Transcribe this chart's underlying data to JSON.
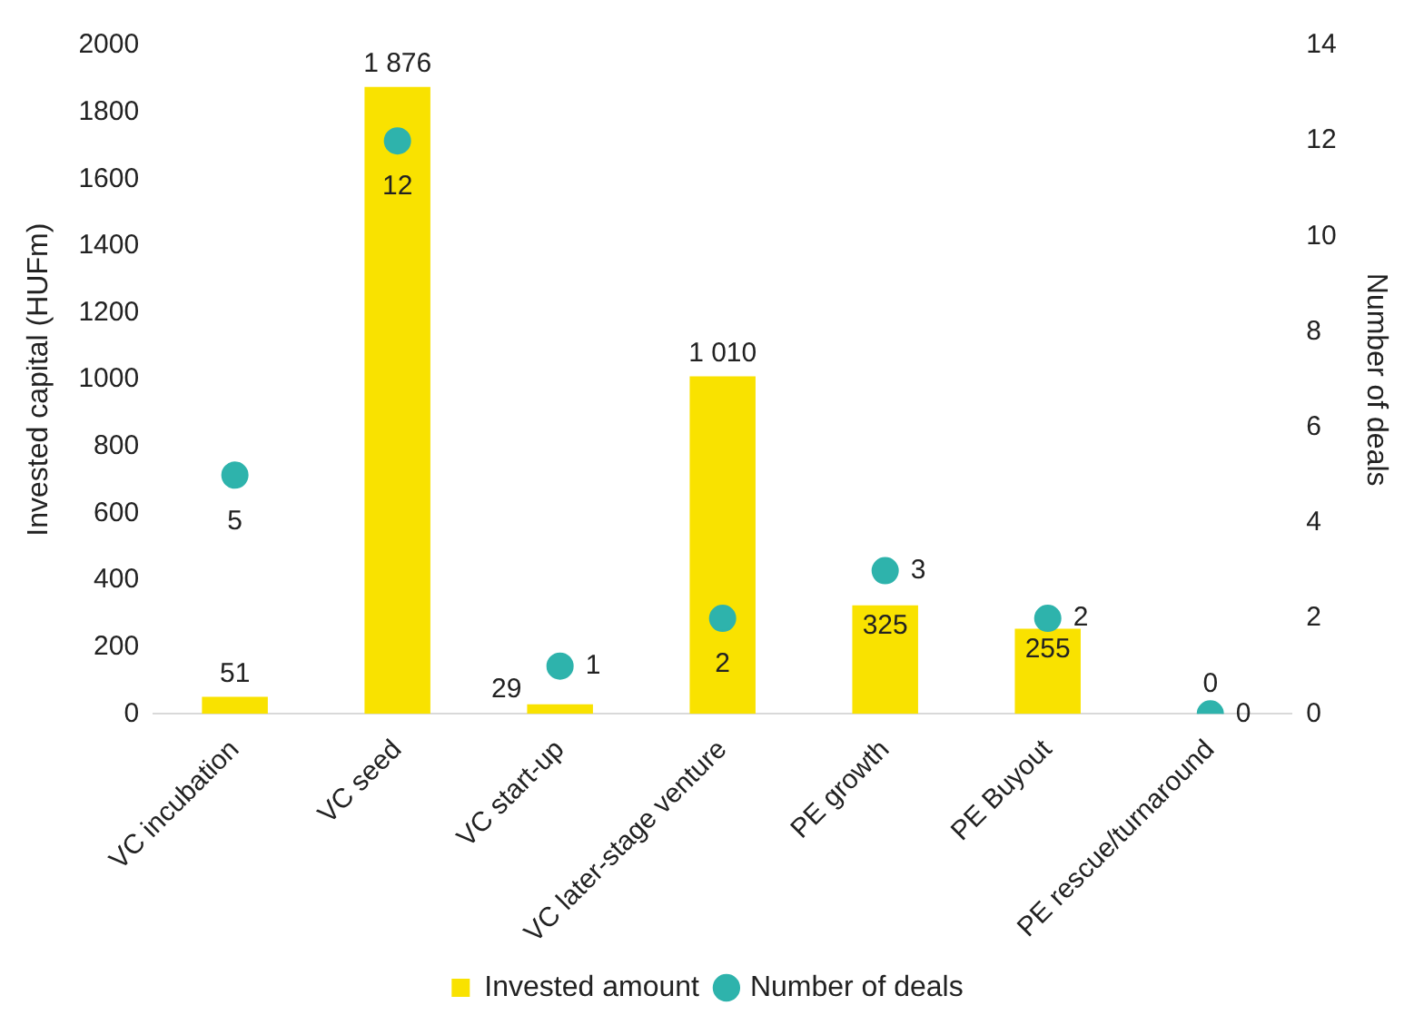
{
  "chart_data": {
    "type": "bar",
    "categories": [
      "VC incubation",
      "VC seed",
      "VC start-up",
      "VC later-stage venture",
      "PE growth",
      "PE Buyout",
      "PE rescue/turnaround"
    ],
    "ylabel": "Invested capital (HUFm)",
    "y2label": "Number of deals",
    "series": [
      {
        "name": "Invested amount",
        "color": "#f9e200",
        "values": [
          51,
          1876,
          29,
          1010,
          325,
          255,
          0
        ],
        "value_labels": [
          "51",
          "1 876",
          "29",
          "1 010",
          "325",
          "255",
          "0"
        ]
      },
      {
        "name": "Number of deals",
        "type": "scatter",
        "axis": "y2",
        "color": "#2eb3ac",
        "marker": "circle",
        "values": [
          5,
          12,
          1,
          2,
          3,
          2,
          0
        ],
        "value_labels": [
          "5",
          "12",
          "1",
          "2",
          "3",
          "2",
          "0"
        ]
      }
    ],
    "ylim": [
      0,
      2000
    ],
    "yticks": [
      0,
      200,
      400,
      600,
      800,
      1000,
      1200,
      1400,
      1600,
      1800,
      2000
    ],
    "y2lim": [
      0,
      14
    ],
    "y2ticks": [
      0,
      2,
      4,
      6,
      8,
      10,
      12,
      14
    ],
    "grid": false,
    "legend": "bottom"
  }
}
